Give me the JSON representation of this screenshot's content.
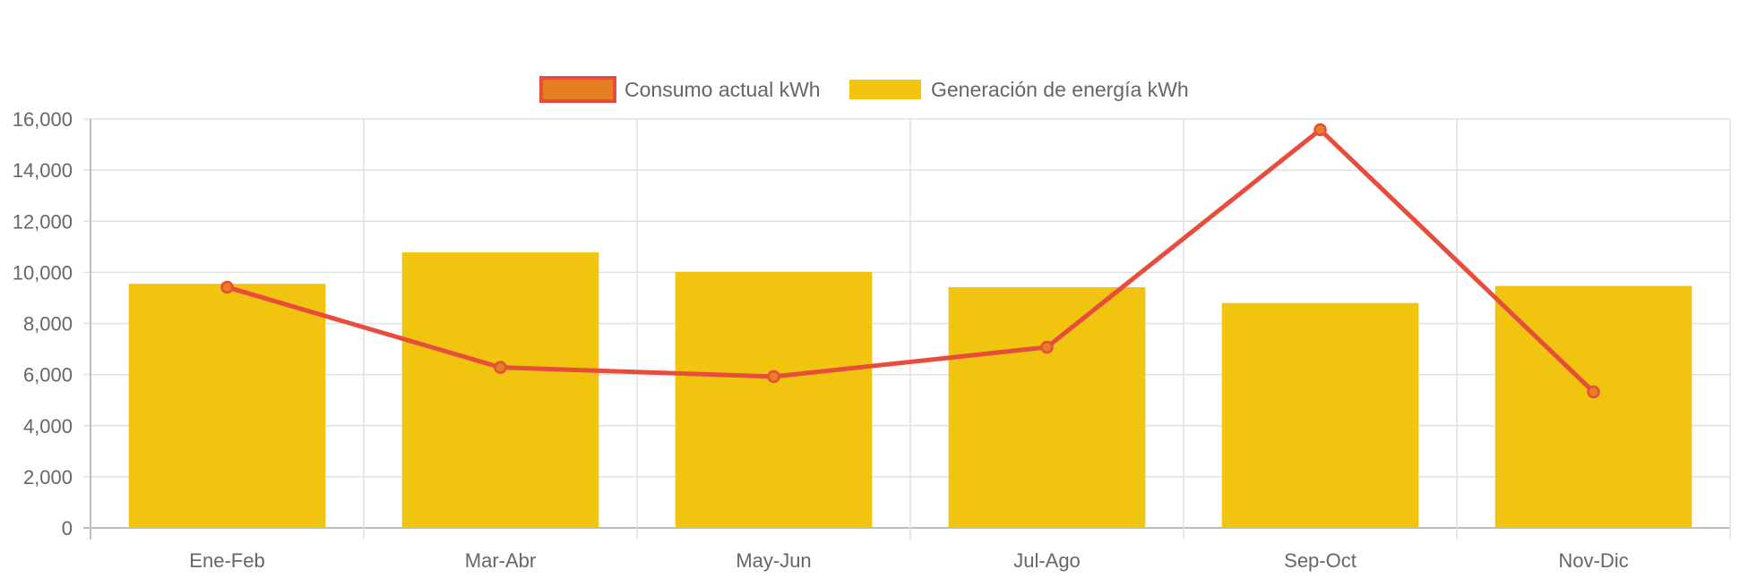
{
  "chart_data": {
    "type": "bar",
    "categories": [
      "Ene-Feb",
      "Mar-Abr",
      "May-Jun",
      "Jul-Ago",
      "Sep-Oct",
      "Nov-Dic"
    ],
    "ylim": [
      0,
      16000
    ],
    "yticks": [
      0,
      2000,
      4000,
      6000,
      8000,
      10000,
      12000,
      14000,
      16000
    ],
    "ytick_labels": [
      "0",
      "2,000",
      "4,000",
      "6,000",
      "8,000",
      "10,000",
      "12,000",
      "14,000",
      "16,000"
    ],
    "grid": true,
    "legend_position": "top-center",
    "series": [
      {
        "name": "Consumo actual kWh",
        "type": "line",
        "values": [
          9420,
          6280,
          5920,
          7070,
          15580,
          5320
        ],
        "color": "#e74c3c",
        "point_color": "#e67e22"
      },
      {
        "name": "Generación de energía kWh",
        "type": "bar",
        "values": [
          9550,
          10780,
          10020,
          9420,
          8800,
          9470
        ],
        "color": "#f1c40f"
      }
    ]
  }
}
